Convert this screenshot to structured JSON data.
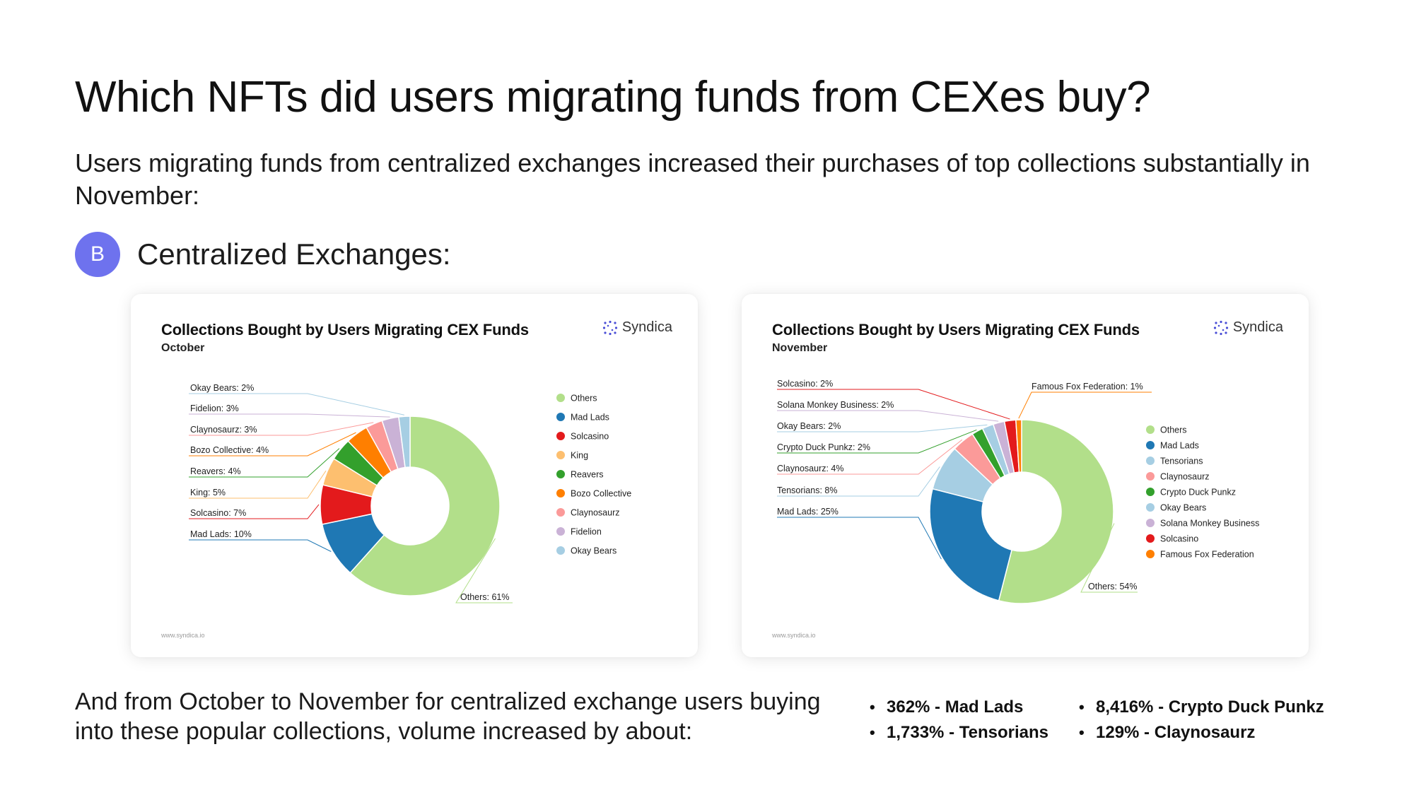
{
  "header": {
    "title": "Which NFTs did users migrating funds from CEXes buy?",
    "subtitle": "Users migrating funds from centralized exchanges increased their purchases of top collections substantially in November:"
  },
  "section": {
    "badge": "B",
    "label": "Centralized Exchanges:"
  },
  "brand": "Syndica",
  "footer_url": "www.syndica.io",
  "colors": {
    "Others": "#b2df8a",
    "Mad Lads": "#1f78b4",
    "Solcasino": "#e31a1c",
    "King": "#fdbf6f",
    "Reavers": "#33a02c",
    "Bozo Collective": "#ff7f00",
    "Claynosaurz": "#fb9a99",
    "Fidelion": "#cab2d6",
    "Okay Bears": "#a6cee3",
    "Tensorians": "#a6cee3",
    "Crypto Duck Punkz": "#33a02c",
    "Solana Monkey Business": "#cab2d6",
    "Famous Fox Federation": "#ff7f00"
  },
  "chart_data": [
    {
      "type": "pie",
      "title": "Collections Bought by Users Migrating CEX Funds",
      "subtitle": "October",
      "slices": [
        {
          "name": "Others",
          "value": 61,
          "label": "Others: 61%"
        },
        {
          "name": "Mad Lads",
          "value": 10,
          "label": "Mad Lads: 10%"
        },
        {
          "name": "Solcasino",
          "value": 7,
          "label": "Solcasino: 7%"
        },
        {
          "name": "King",
          "value": 5,
          "label": "King: 5%"
        },
        {
          "name": "Reavers",
          "value": 4,
          "label": "Reavers: 4%"
        },
        {
          "name": "Bozo Collective",
          "value": 4,
          "label": "Bozo Collective: 4%"
        },
        {
          "name": "Claynosaurz",
          "value": 3,
          "label": "Claynosaurz: 3%"
        },
        {
          "name": "Fidelion",
          "value": 3,
          "label": "Fidelion: 3%"
        },
        {
          "name": "Okay Bears",
          "value": 2,
          "label": "Okay Bears: 2%"
        }
      ],
      "legend": [
        "Others",
        "Mad Lads",
        "Solcasino",
        "King",
        "Reavers",
        "Bozo Collective",
        "Claynosaurz",
        "Fidelion",
        "Okay Bears"
      ],
      "legend_position": "right"
    },
    {
      "type": "pie",
      "title": "Collections Bought by Users Migrating CEX Funds",
      "subtitle": "November",
      "slices": [
        {
          "name": "Others",
          "value": 54,
          "label": "Others: 54%"
        },
        {
          "name": "Mad Lads",
          "value": 25,
          "label": "Mad Lads: 25%"
        },
        {
          "name": "Tensorians",
          "value": 8,
          "label": "Tensorians: 8%"
        },
        {
          "name": "Claynosaurz",
          "value": 4,
          "label": "Claynosaurz: 4%"
        },
        {
          "name": "Crypto Duck Punkz",
          "value": 2,
          "label": "Crypto Duck Punkz: 2%"
        },
        {
          "name": "Okay Bears",
          "value": 2,
          "label": "Okay Bears: 2%"
        },
        {
          "name": "Solana Monkey Business",
          "value": 2,
          "label": "Solana Monkey Business: 2%"
        },
        {
          "name": "Solcasino",
          "value": 2,
          "label": "Solcasino: 2%"
        },
        {
          "name": "Famous Fox Federation",
          "value": 1,
          "label": "Famous Fox Federation: 1%"
        }
      ],
      "legend": [
        "Others",
        "Mad Lads",
        "Tensorians",
        "Claynosaurz",
        "Crypto Duck Punkz",
        "Okay Bears",
        "Solana Monkey Business",
        "Solcasino",
        "Famous Fox Federation"
      ],
      "legend_position": "right"
    }
  ],
  "bottom": {
    "text": "And from October to November for centralized exchange users buying into these popular collections, volume increased by about:",
    "stats": [
      "362% - Mad Lads",
      "8,416% - Crypto Duck Punkz",
      "1,733% - Tensorians",
      "129% - Claynosaurz"
    ]
  }
}
